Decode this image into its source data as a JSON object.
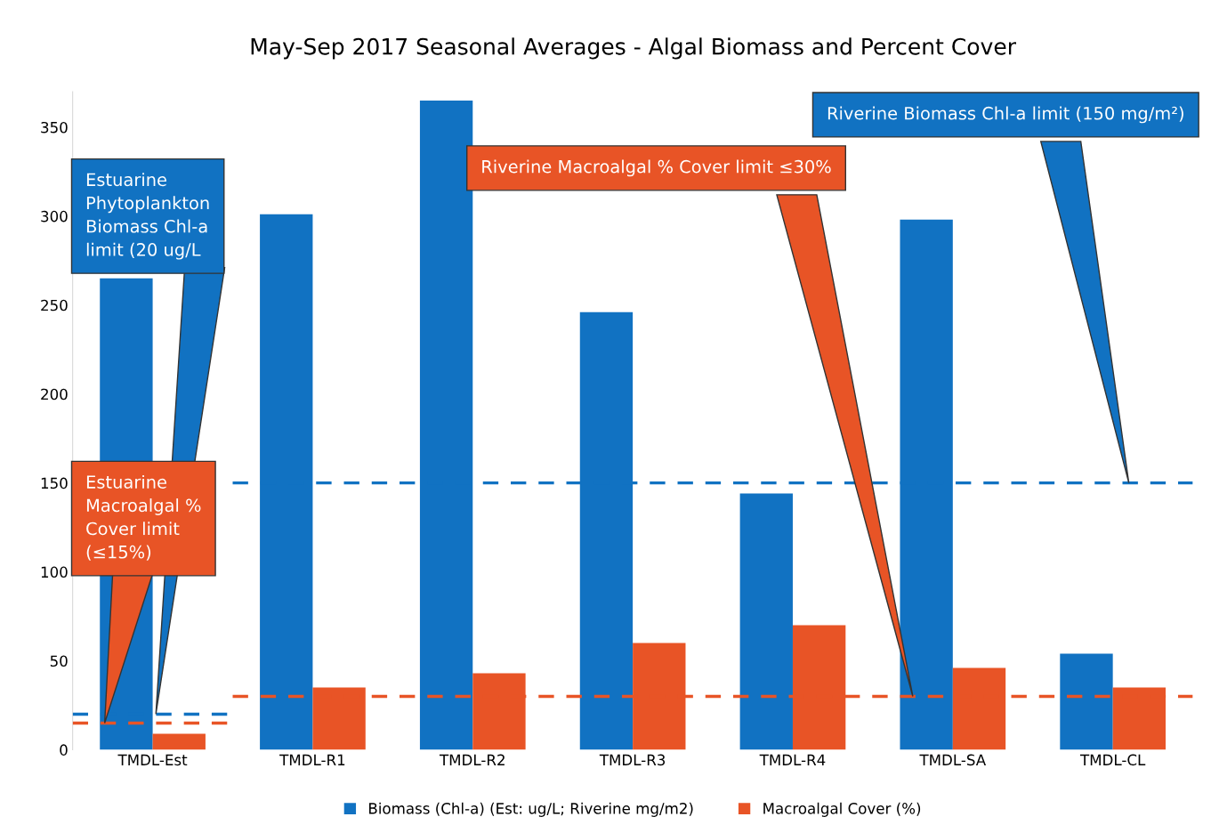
{
  "chart_data": {
    "type": "bar",
    "title": "May-Sep 2017 Seasonal Averages - Algal Biomass and Percent Cover",
    "categories": [
      "TMDL-Est",
      "TMDL-R1",
      "TMDL-R2",
      "TMDL-R3",
      "TMDL-R4",
      "TMDL-SA",
      "TMDL-CL"
    ],
    "series": [
      {
        "name": "Biomass (Chl-a) (Est: ug/L; Riverine mg/m2)",
        "color": "#1172c2",
        "values": [
          265,
          301,
          365,
          246,
          144,
          298,
          54
        ]
      },
      {
        "name": "Macroalgal Cover (%)",
        "color": "#e85426",
        "values": [
          9,
          35,
          43,
          60,
          70,
          46,
          35
        ]
      }
    ],
    "ylim": [
      0,
      370
    ],
    "yticks": [
      0,
      50,
      100,
      150,
      200,
      250,
      300,
      350
    ],
    "ref_lines": [
      {
        "axis": "y",
        "value": 20,
        "color": "#1172c2",
        "line_style": "dashed",
        "label": "Estuarine Phytoplankton Biomass Chl-a limit (20 ug/L"
      },
      {
        "axis": "y",
        "value": 15,
        "color": "#e85426",
        "line_style": "dashed",
        "label": "Estuarine Macroalgal % Cover limit (≤15%)"
      },
      {
        "axis": "y",
        "value": 30,
        "color": "#e85426",
        "line_style": "dashed",
        "label": "Riverine Macroalgal % Cover limit ≤30%"
      },
      {
        "axis": "y",
        "value": 150,
        "color": "#1172c2",
        "line_style": "dashed",
        "label": "Riverine Biomass Chl-a limit (150 mg/m²)"
      }
    ],
    "grid": false,
    "legend": "bottom"
  }
}
